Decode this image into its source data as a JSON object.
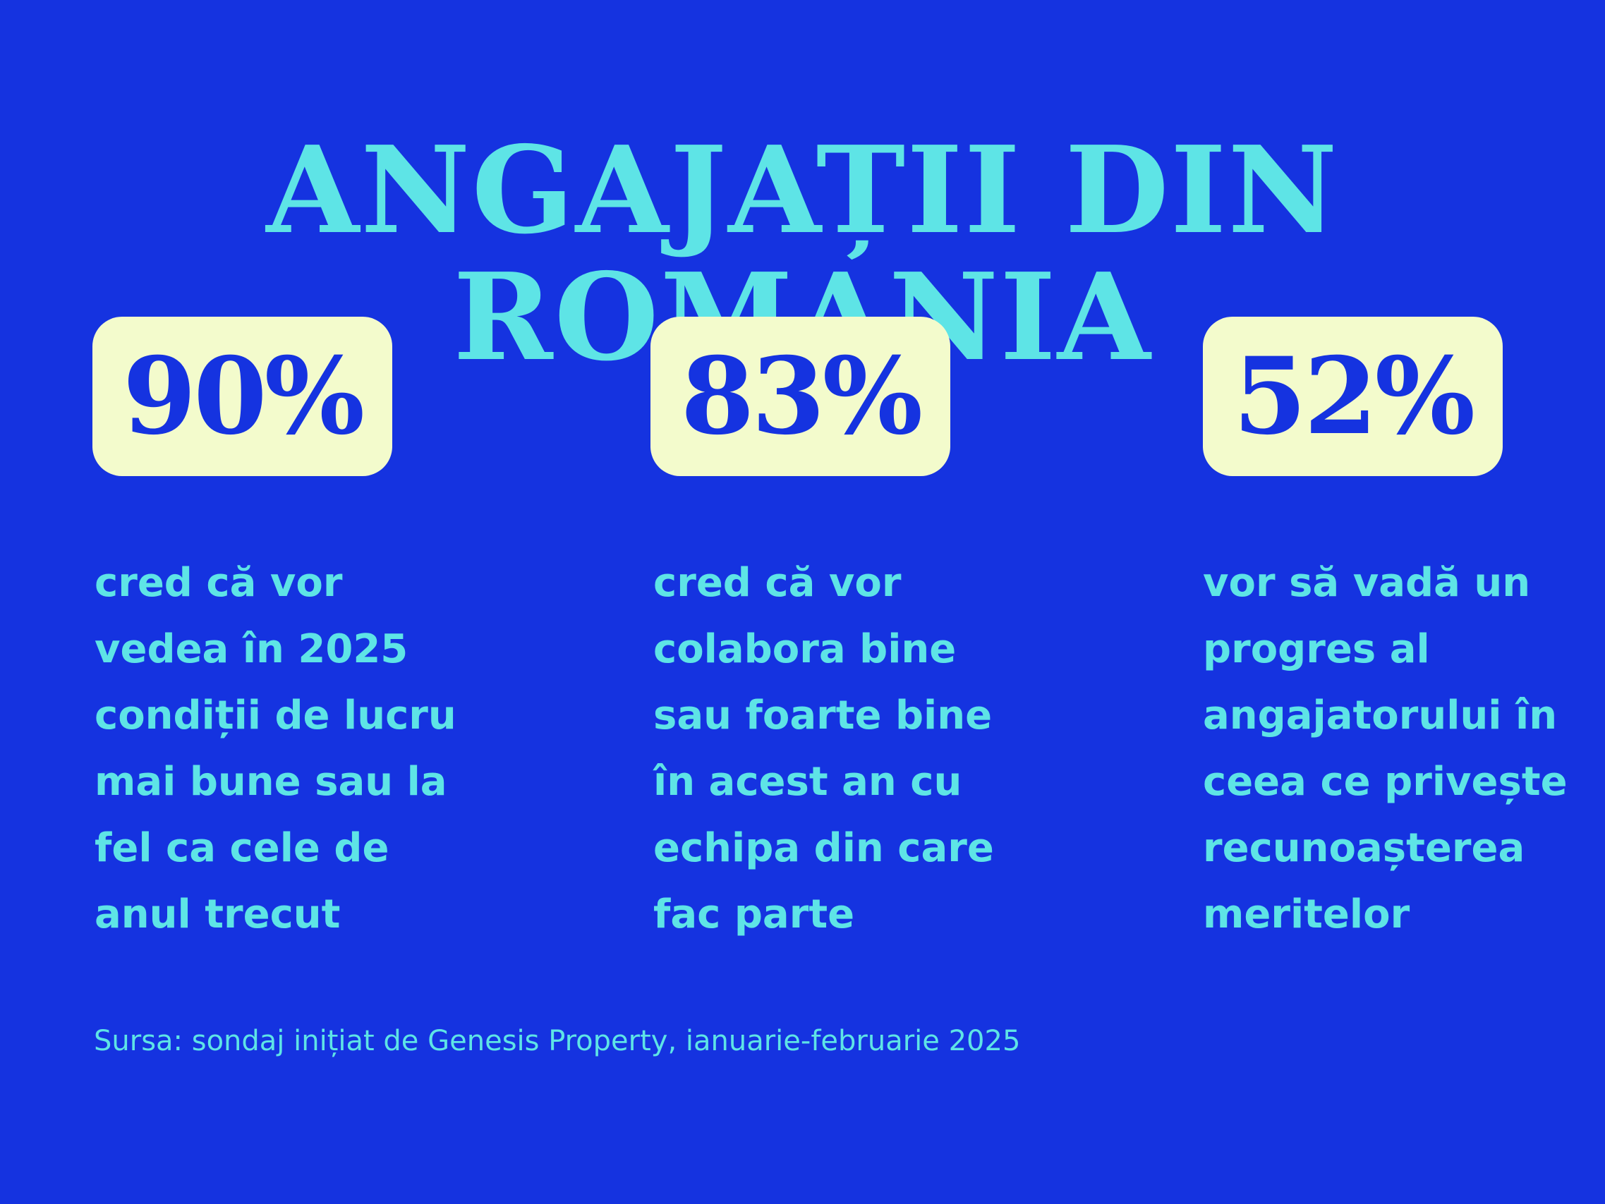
{
  "title": "ANGAJAȚII DIN ROMANIA",
  "colors": {
    "background": "#1533e0",
    "accent": "#5ee4e6",
    "box": "#f3fbcc"
  },
  "stats": [
    {
      "value": "90%",
      "lines": [
        "cred că vor",
        "vedea în 2025",
        "condiții de lucru",
        "mai bune sau la",
        "fel ca cele de",
        "anul trecut"
      ]
    },
    {
      "value": "83%",
      "lines": [
        "cred că vor",
        "colabora bine",
        "sau foarte bine",
        "în acest an cu",
        "echipa din care",
        "fac parte"
      ]
    },
    {
      "value": "52%",
      "lines": [
        "vor să vadă un",
        "progres al",
        "angajatorului în",
        "ceea ce privește",
        "recunoașterea",
        "meritelor"
      ]
    }
  ],
  "source": "Sursa: sondaj inițiat de Genesis Property, ianuarie-februarie 2025"
}
